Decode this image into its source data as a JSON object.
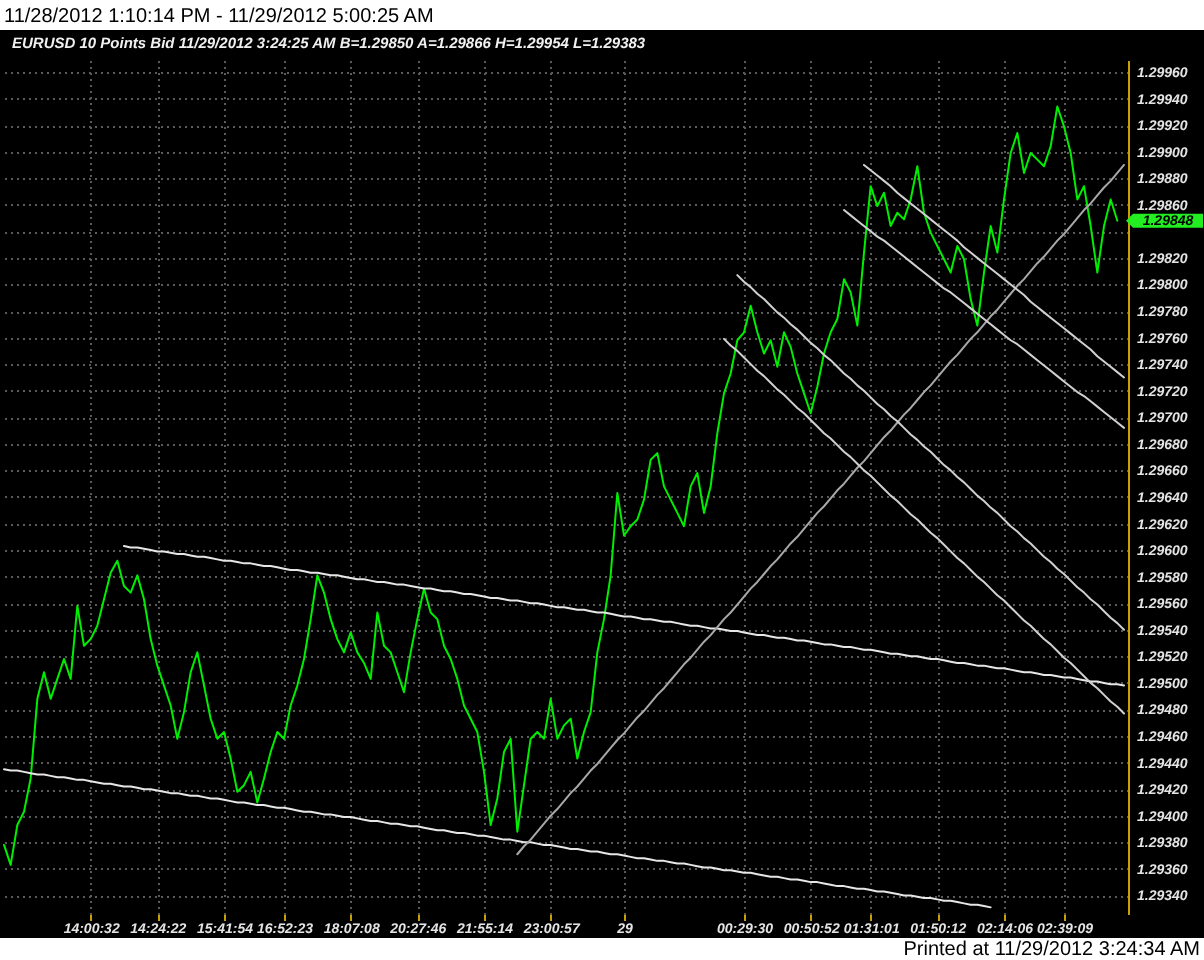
{
  "chart_data": {
    "type": "line",
    "title": "11/28/2012 1:10:14 PM - 11/29/2012 5:00:25 AM",
    "subtitle": "EURUSD   10 Points   Bid   11/29/2012  3:24:25 AM  B=1.29850  A=1.29866  H=1.29954  L=1.29383",
    "annotations": [
      "Printed at 11/29/2012 3:24:34 AM",
      "1.29848"
    ],
    "categories": [
      null,
      null,
      null,
      null,
      null,
      null,
      null,
      null,
      null,
      null,
      null,
      null,
      null,
      "14:00:32",
      null,
      null,
      null,
      null,
      null,
      null,
      null,
      null,
      null,
      "14:24:22",
      null,
      null,
      null,
      null,
      null,
      null,
      null,
      null,
      null,
      "15:41:54",
      null,
      null,
      null,
      null,
      null,
      null,
      null,
      null,
      "16:52:23",
      null,
      null,
      null,
      null,
      null,
      null,
      null,
      null,
      null,
      "18:07:08",
      null,
      null,
      null,
      null,
      null,
      null,
      null,
      null,
      null,
      "20:27:46",
      null,
      null,
      null,
      null,
      null,
      null,
      null,
      null,
      null,
      "21:55:14",
      null,
      null,
      null,
      null,
      null,
      null,
      null,
      null,
      null,
      "23:00:57",
      null,
      null,
      null,
      null,
      null,
      null,
      null,
      null,
      null,
      null,
      "29",
      null,
      null,
      null,
      null,
      null,
      null,
      null,
      null,
      null,
      null,
      null,
      null,
      null,
      null,
      null,
      null,
      null,
      "00:29:30",
      null,
      null,
      null,
      null,
      null,
      null,
      null,
      null,
      null,
      "00:50:52",
      null,
      null,
      null,
      null,
      null,
      null,
      null,
      null,
      "01:31:01",
      null,
      null,
      null,
      null,
      null,
      null,
      null,
      null,
      null,
      "01:50:12",
      null,
      null,
      null,
      null,
      null,
      null,
      null,
      null,
      null,
      "02:14:06",
      null,
      null,
      null,
      null,
      null,
      null,
      null,
      null,
      "02:39:09",
      null,
      null,
      null,
      null,
      null,
      null,
      null,
      null,
      null
    ],
    "ylim": [
      1.29326,
      1.29969
    ],
    "yticks": [
      {
        "value": 1.2934,
        "label": "1.29340"
      },
      {
        "value": 1.2936,
        "label": "1.29360"
      },
      {
        "value": 1.2938,
        "label": "1.29380"
      },
      {
        "value": 1.294,
        "label": "1.29400"
      },
      {
        "value": 1.2942,
        "label": "1.29420"
      },
      {
        "value": 1.2944,
        "label": "1.29440"
      },
      {
        "value": 1.2946,
        "label": "1.29460"
      },
      {
        "value": 1.2948,
        "label": "1.29480"
      },
      {
        "value": 1.295,
        "label": "1.29500"
      },
      {
        "value": 1.2952,
        "label": "1.29520"
      },
      {
        "value": 1.2954,
        "label": "1.29540"
      },
      {
        "value": 1.2956,
        "label": "1.29560"
      },
      {
        "value": 1.2958,
        "label": "1.29580"
      },
      {
        "value": 1.296,
        "label": "1.29600"
      },
      {
        "value": 1.2962,
        "label": "1.29620"
      },
      {
        "value": 1.2964,
        "label": "1.29640"
      },
      {
        "value": 1.2966,
        "label": "1.29660"
      },
      {
        "value": 1.2968,
        "label": "1.29680"
      },
      {
        "value": 1.297,
        "label": "1.29700"
      },
      {
        "value": 1.2972,
        "label": "1.29720"
      },
      {
        "value": 1.2974,
        "label": "1.29740"
      },
      {
        "value": 1.2976,
        "label": "1.29760"
      },
      {
        "value": 1.2978,
        "label": "1.29780"
      },
      {
        "value": 1.298,
        "label": "1.29800"
      },
      {
        "value": 1.2982,
        "label": "1.29820"
      },
      {
        "value": 1.2984,
        "label": null
      },
      {
        "value": 1.2986,
        "label": "1.29860"
      },
      {
        "value": 1.2988,
        "label": "1.29880"
      },
      {
        "value": 1.299,
        "label": "1.29900"
      },
      {
        "value": 1.2992,
        "label": "1.29920"
      },
      {
        "value": 1.2994,
        "label": "1.29940"
      },
      {
        "value": 1.2996,
        "label": "1.29960"
      }
    ],
    "grid": true,
    "series": [
      {
        "color": "#00ee00",
        "values": [
          1.29378,
          1.29363,
          1.29393,
          1.29403,
          1.29428,
          1.29488,
          1.29508,
          1.29488,
          1.29503,
          1.29518,
          1.29503,
          1.29558,
          1.29528,
          1.29533,
          1.29543,
          1.29563,
          1.29583,
          1.29592,
          1.29573,
          1.29568,
          1.29581,
          1.29563,
          1.29533,
          1.29513,
          1.29498,
          1.29483,
          1.29458,
          1.29478,
          1.29508,
          1.29523,
          1.29498,
          1.29473,
          1.29458,
          1.29463,
          1.29443,
          1.29418,
          1.29423,
          1.29433,
          1.2941,
          1.29428,
          1.29448,
          1.29463,
          1.29458,
          1.29483,
          1.29498,
          1.29518,
          1.29548,
          1.29581,
          1.29568,
          1.29548,
          1.29533,
          1.29523,
          1.29538,
          1.29523,
          1.29515,
          1.29503,
          1.29553,
          1.29528,
          1.29523,
          1.29508,
          1.29493,
          1.29523,
          1.29548,
          1.29571,
          1.29553,
          1.29548,
          1.29528,
          1.29518,
          1.29503,
          1.29483,
          1.29473,
          1.29463,
          1.29433,
          1.29393,
          1.29413,
          1.29448,
          1.29458,
          1.29388,
          1.29423,
          1.29458,
          1.29463,
          1.29458,
          1.29488,
          1.29458,
          1.29468,
          1.29473,
          1.29443,
          1.29463,
          1.29478,
          1.29523,
          1.29548,
          1.29581,
          1.29643,
          1.29611,
          1.29618,
          1.29623,
          1.29638,
          1.29668,
          1.29673,
          1.29648,
          1.29638,
          1.29628,
          1.29618,
          1.29648,
          1.29658,
          1.29628,
          1.29648,
          1.29688,
          1.29718,
          1.29733,
          1.29758,
          1.29764,
          1.29784,
          1.29764,
          1.29748,
          1.29758,
          1.29738,
          1.29764,
          1.29753,
          1.29733,
          1.29718,
          1.29703,
          1.29723,
          1.29748,
          1.29764,
          1.29774,
          1.29804,
          1.29794,
          1.29769,
          1.29824,
          1.29874,
          1.29859,
          1.29869,
          1.29844,
          1.29854,
          1.29849,
          1.29864,
          1.29889,
          1.29854,
          1.29839,
          1.29829,
          1.29819,
          1.29809,
          1.29829,
          1.29819,
          1.29789,
          1.29769,
          1.29809,
          1.29844,
          1.29824,
          1.29864,
          1.29899,
          1.29914,
          1.29884,
          1.29899,
          1.29894,
          1.29889,
          1.29904,
          1.29934,
          1.29919,
          1.29899,
          1.29864,
          1.29874,
          1.29844,
          1.29809,
          1.29844,
          1.29864,
          1.29848,
          null
        ]
      },
      {
        "type": "line",
        "color": "#e6e6e6",
        "values": [
          null,
          null,
          null,
          null,
          null,
          null,
          null,
          null,
          null,
          null,
          null,
          null,
          null,
          null,
          null,
          null,
          null,
          null,
          1.29603,
          1.29602,
          1.29602,
          1.29601,
          1.296,
          1.29599,
          1.29599,
          1.29598,
          1.29597,
          1.29597,
          1.29596,
          1.29595,
          1.29595,
          1.29594,
          1.29593,
          1.29592,
          1.29592,
          1.29591,
          1.2959,
          1.2959,
          1.29589,
          1.29588,
          1.29588,
          1.29587,
          1.29586,
          1.29585,
          1.29585,
          1.29584,
          1.29583,
          1.29583,
          1.29582,
          1.29581,
          1.29581,
          1.2958,
          1.29579,
          1.29578,
          1.29578,
          1.29577,
          1.29576,
          1.29576,
          1.29575,
          1.29574,
          1.29574,
          1.29573,
          1.29572,
          1.29571,
          1.29571,
          1.2957,
          1.29569,
          1.29569,
          1.29568,
          1.29567,
          1.29567,
          1.29566,
          1.29565,
          1.29564,
          1.29564,
          1.29563,
          1.29562,
          1.29562,
          1.29561,
          1.2956,
          1.2956,
          1.29559,
          1.29558,
          1.29557,
          1.29557,
          1.29556,
          1.29555,
          1.29555,
          1.29554,
          1.29553,
          1.29553,
          1.29552,
          1.29551,
          1.2955,
          1.2955,
          1.29549,
          1.29548,
          1.29548,
          1.29547,
          1.29546,
          1.29546,
          1.29545,
          1.29544,
          1.29543,
          1.29543,
          1.29542,
          1.29541,
          1.29541,
          1.2954,
          1.29539,
          1.29539,
          1.29538,
          1.29537,
          1.29536,
          1.29536,
          1.29535,
          1.29534,
          1.29534,
          1.29533,
          1.29532,
          1.29532,
          1.29531,
          1.2953,
          1.29529,
          1.29529,
          1.29528,
          1.29527,
          1.29527,
          1.29526,
          1.29525,
          1.29525,
          1.29524,
          1.29523,
          1.29522,
          1.29522,
          1.29521,
          1.2952,
          1.2952,
          1.29519,
          1.29518,
          1.29518,
          1.29517,
          1.29516,
          1.29515,
          1.29515,
          1.29514,
          1.29513,
          1.29513,
          1.29512,
          1.29511,
          1.29511,
          1.2951,
          1.29509,
          1.29508,
          1.29508,
          1.29507,
          1.29506,
          1.29506,
          1.29505,
          1.29504,
          1.29504,
          1.29503,
          1.29502,
          1.29501,
          1.29501,
          1.295,
          1.29499,
          1.29499,
          1.29498
        ]
      },
      {
        "type": "line",
        "color": "#e6e6e6",
        "values": [
          1.29435,
          1.29434,
          1.29434,
          1.29433,
          1.29432,
          1.29431,
          1.29431,
          1.2943,
          1.29429,
          1.29429,
          1.29428,
          1.29427,
          1.29427,
          1.29426,
          1.29425,
          1.29424,
          1.29424,
          1.29423,
          1.29422,
          1.29422,
          1.29421,
          1.2942,
          1.2942,
          1.29419,
          1.29418,
          1.29417,
          1.29417,
          1.29416,
          1.29415,
          1.29415,
          1.29414,
          1.29413,
          1.29413,
          1.29412,
          1.29411,
          1.2941,
          1.2941,
          1.29409,
          1.29408,
          1.29408,
          1.29407,
          1.29406,
          1.29406,
          1.29405,
          1.29404,
          1.29403,
          1.29403,
          1.29402,
          1.29401,
          1.29401,
          1.294,
          1.29399,
          1.29399,
          1.29398,
          1.29397,
          1.29396,
          1.29396,
          1.29395,
          1.29394,
          1.29394,
          1.29393,
          1.29392,
          1.29392,
          1.29391,
          1.2939,
          1.29389,
          1.29389,
          1.29388,
          1.29387,
          1.29387,
          1.29386,
          1.29385,
          1.29385,
          1.29384,
          1.29383,
          1.29382,
          1.29382,
          1.29381,
          1.2938,
          1.2938,
          1.29379,
          1.29378,
          1.29378,
          1.29377,
          1.29376,
          1.29375,
          1.29375,
          1.29374,
          1.29373,
          1.29373,
          1.29372,
          1.29371,
          1.29371,
          1.2937,
          1.29369,
          1.29368,
          1.29368,
          1.29367,
          1.29366,
          1.29366,
          1.29365,
          1.29364,
          1.29364,
          1.29363,
          1.29362,
          1.29361,
          1.29361,
          1.2936,
          1.29359,
          1.29359,
          1.29358,
          1.29357,
          1.29357,
          1.29356,
          1.29355,
          1.29354,
          1.29354,
          1.29353,
          1.29352,
          1.29352,
          1.29351,
          1.2935,
          1.2935,
          1.29349,
          1.29348,
          1.29347,
          1.29347,
          1.29346,
          1.29345,
          1.29345,
          1.29344,
          1.29343,
          1.29343,
          1.29342,
          1.29341,
          1.2934,
          1.2934,
          1.29339,
          1.29338,
          1.29338,
          1.29337,
          1.29336,
          1.29336,
          1.29335,
          1.29334,
          1.29333,
          1.29333,
          1.29332,
          1.29331,
          null,
          null,
          null,
          null,
          null,
          null,
          null,
          null,
          null,
          null,
          null,
          null,
          null,
          null,
          null,
          null,
          null,
          null,
          null,
          null
        ]
      },
      {
        "type": "line",
        "color": "#a8a8a8",
        "values": [
          null,
          null,
          null,
          null,
          null,
          null,
          null,
          null,
          null,
          null,
          null,
          null,
          null,
          null,
          null,
          null,
          null,
          null,
          null,
          null,
          null,
          null,
          null,
          null,
          null,
          null,
          null,
          null,
          null,
          null,
          null,
          null,
          null,
          null,
          null,
          null,
          null,
          null,
          null,
          null,
          null,
          null,
          null,
          null,
          null,
          null,
          null,
          null,
          null,
          null,
          null,
          null,
          null,
          null,
          null,
          null,
          null,
          null,
          null,
          null,
          null,
          null,
          null,
          null,
          null,
          null,
          null,
          null,
          null,
          null,
          null,
          null,
          null,
          null,
          null,
          null,
          null,
          1.29371,
          1.29377,
          1.29382,
          1.29388,
          1.29394,
          1.294,
          1.29405,
          1.29411,
          1.29417,
          1.29422,
          1.29428,
          1.29434,
          1.29439,
          1.29445,
          1.29451,
          1.29457,
          1.29462,
          1.29468,
          1.29474,
          1.29479,
          1.29485,
          1.29491,
          1.29496,
          1.29502,
          1.29508,
          1.29514,
          1.29519,
          1.29525,
          1.29531,
          1.29536,
          1.29542,
          1.29548,
          1.29553,
          1.29559,
          1.29565,
          1.29571,
          1.29576,
          1.29582,
          1.29588,
          1.29593,
          1.29599,
          1.29605,
          1.2961,
          1.29616,
          1.29622,
          1.29628,
          1.29633,
          1.29639,
          1.29645,
          1.2965,
          1.29656,
          1.29662,
          1.29667,
          1.29673,
          1.29679,
          1.29685,
          1.2969,
          1.29696,
          1.29702,
          1.29707,
          1.29713,
          1.29719,
          1.29724,
          1.2973,
          1.29736,
          1.29742,
          1.29747,
          1.29753,
          1.29759,
          1.29764,
          1.2977,
          1.29776,
          1.29781,
          1.29787,
          1.29793,
          1.29799,
          1.29804,
          1.2981,
          1.29816,
          1.29821,
          1.29827,
          1.29833,
          1.29838,
          1.29844,
          1.2985,
          1.29856,
          1.29861,
          1.29867,
          1.29873,
          1.29878,
          1.29884,
          1.2989
        ]
      },
      {
        "type": "line",
        "color": "#d0d0d0",
        "values": [
          null,
          null,
          null,
          null,
          null,
          null,
          null,
          null,
          null,
          null,
          null,
          null,
          null,
          null,
          null,
          null,
          null,
          null,
          null,
          null,
          null,
          null,
          null,
          null,
          null,
          null,
          null,
          null,
          null,
          null,
          null,
          null,
          null,
          null,
          null,
          null,
          null,
          null,
          null,
          null,
          null,
          null,
          null,
          null,
          null,
          null,
          null,
          null,
          null,
          null,
          null,
          null,
          null,
          null,
          null,
          null,
          null,
          null,
          null,
          null,
          null,
          null,
          null,
          null,
          null,
          null,
          null,
          null,
          null,
          null,
          null,
          null,
          null,
          null,
          null,
          null,
          null,
          null,
          null,
          null,
          null,
          null,
          null,
          null,
          null,
          null,
          null,
          null,
          null,
          null,
          null,
          null,
          null,
          null,
          null,
          null,
          null,
          null,
          null,
          null,
          null,
          null,
          null,
          null,
          null,
          null,
          null,
          null,
          null,
          null,
          1.29807,
          1.29802,
          1.29798,
          1.29793,
          1.29789,
          1.29784,
          1.29779,
          1.29775,
          1.2977,
          1.29766,
          1.29761,
          1.29756,
          1.29752,
          1.29747,
          1.29743,
          1.29738,
          1.29733,
          1.29729,
          1.29724,
          1.2972,
          1.29715,
          1.2971,
          1.29706,
          1.29701,
          1.29697,
          1.29692,
          1.29687,
          1.29683,
          1.29678,
          1.29674,
          1.29669,
          1.29664,
          1.2966,
          1.29655,
          1.29651,
          1.29646,
          1.29641,
          1.29637,
          1.29632,
          1.29628,
          1.29623,
          1.29618,
          1.29614,
          1.29609,
          1.29605,
          1.296,
          1.29595,
          1.29591,
          1.29586,
          1.29582,
          1.29577,
          1.29572,
          1.29568,
          1.29563,
          1.29559,
          1.29554,
          1.29549,
          1.29545,
          1.2954
        ]
      },
      {
        "type": "line",
        "color": "#d0d0d0",
        "values": [
          null,
          null,
          null,
          null,
          null,
          null,
          null,
          null,
          null,
          null,
          null,
          null,
          null,
          null,
          null,
          null,
          null,
          null,
          null,
          null,
          null,
          null,
          null,
          null,
          null,
          null,
          null,
          null,
          null,
          null,
          null,
          null,
          null,
          null,
          null,
          null,
          null,
          null,
          null,
          null,
          null,
          null,
          null,
          null,
          null,
          null,
          null,
          null,
          null,
          null,
          null,
          null,
          null,
          null,
          null,
          null,
          null,
          null,
          null,
          null,
          null,
          null,
          null,
          null,
          null,
          null,
          null,
          null,
          null,
          null,
          null,
          null,
          null,
          null,
          null,
          null,
          null,
          null,
          null,
          null,
          null,
          null,
          null,
          null,
          null,
          null,
          null,
          null,
          null,
          null,
          null,
          null,
          null,
          null,
          null,
          null,
          null,
          null,
          null,
          null,
          null,
          null,
          null,
          null,
          null,
          null,
          null,
          null,
          1.29759,
          1.29754,
          1.2975,
          1.29745,
          1.2974,
          1.29735,
          1.29731,
          1.29726,
          1.29721,
          1.29717,
          1.29712,
          1.29707,
          1.29703,
          1.29698,
          1.29693,
          1.29688,
          1.29684,
          1.29679,
          1.29674,
          1.2967,
          1.29665,
          1.2966,
          1.29656,
          1.29651,
          1.29646,
          1.29641,
          1.29637,
          1.29632,
          1.29627,
          1.29623,
          1.29618,
          1.29613,
          1.29609,
          1.29604,
          1.29599,
          1.29594,
          1.2959,
          1.29585,
          1.2958,
          1.29576,
          1.29571,
          1.29566,
          1.29562,
          1.29557,
          1.29552,
          1.29547,
          1.29543,
          1.29538,
          1.29533,
          1.29529,
          1.29524,
          1.29519,
          1.29515,
          1.2951,
          1.29505,
          1.295,
          1.29496,
          1.29491,
          1.29486,
          1.29482,
          1.29477
        ]
      },
      {
        "type": "line",
        "color": "#d0d0d0",
        "values": [
          null,
          null,
          null,
          null,
          null,
          null,
          null,
          null,
          null,
          null,
          null,
          null,
          null,
          null,
          null,
          null,
          null,
          null,
          null,
          null,
          null,
          null,
          null,
          null,
          null,
          null,
          null,
          null,
          null,
          null,
          null,
          null,
          null,
          null,
          null,
          null,
          null,
          null,
          null,
          null,
          null,
          null,
          null,
          null,
          null,
          null,
          null,
          null,
          null,
          null,
          null,
          null,
          null,
          null,
          null,
          null,
          null,
          null,
          null,
          null,
          null,
          null,
          null,
          null,
          null,
          null,
          null,
          null,
          null,
          null,
          null,
          null,
          null,
          null,
          null,
          null,
          null,
          null,
          null,
          null,
          null,
          null,
          null,
          null,
          null,
          null,
          null,
          null,
          null,
          null,
          null,
          null,
          null,
          null,
          null,
          null,
          null,
          null,
          null,
          null,
          null,
          null,
          null,
          null,
          null,
          null,
          null,
          null,
          null,
          null,
          null,
          null,
          null,
          null,
          null,
          null,
          null,
          null,
          null,
          null,
          null,
          null,
          null,
          null,
          null,
          null,
          null,
          null,
          null,
          1.2989,
          1.29886,
          1.29882,
          1.29878,
          1.29874,
          1.29869,
          1.29865,
          1.29861,
          1.29857,
          1.29853,
          1.29849,
          1.29845,
          1.29841,
          1.29837,
          1.29833,
          1.29828,
          1.29824,
          1.2982,
          1.29816,
          1.29812,
          1.29808,
          1.29804,
          1.298,
          1.29796,
          1.29792,
          1.29787,
          1.29783,
          1.29779,
          1.29775,
          1.29771,
          1.29767,
          1.29763,
          1.29759,
          1.29755,
          1.29751,
          1.29746,
          1.29742,
          1.29738,
          1.29734,
          1.2973
        ]
      },
      {
        "type": "line",
        "color": "#d0d0d0",
        "values": [
          null,
          null,
          null,
          null,
          null,
          null,
          null,
          null,
          null,
          null,
          null,
          null,
          null,
          null,
          null,
          null,
          null,
          null,
          null,
          null,
          null,
          null,
          null,
          null,
          null,
          null,
          null,
          null,
          null,
          null,
          null,
          null,
          null,
          null,
          null,
          null,
          null,
          null,
          null,
          null,
          null,
          null,
          null,
          null,
          null,
          null,
          null,
          null,
          null,
          null,
          null,
          null,
          null,
          null,
          null,
          null,
          null,
          null,
          null,
          null,
          null,
          null,
          null,
          null,
          null,
          null,
          null,
          null,
          null,
          null,
          null,
          null,
          null,
          null,
          null,
          null,
          null,
          null,
          null,
          null,
          null,
          null,
          null,
          null,
          null,
          null,
          null,
          null,
          null,
          null,
          null,
          null,
          null,
          null,
          null,
          null,
          null,
          null,
          null,
          null,
          null,
          null,
          null,
          null,
          null,
          null,
          null,
          null,
          null,
          null,
          null,
          null,
          null,
          null,
          null,
          null,
          null,
          null,
          null,
          null,
          null,
          null,
          null,
          null,
          null,
          null,
          1.29856,
          1.29852,
          1.29848,
          1.29844,
          1.2984,
          1.29836,
          1.29833,
          1.29829,
          1.29825,
          1.29821,
          1.29817,
          1.29813,
          1.29809,
          1.29805,
          1.29801,
          1.29797,
          1.29794,
          1.2979,
          1.29786,
          1.29782,
          1.29778,
          1.29774,
          1.2977,
          1.29766,
          1.29762,
          1.29758,
          1.29755,
          1.29751,
          1.29747,
          1.29743,
          1.29739,
          1.29735,
          1.29731,
          1.29727,
          1.29723,
          1.29719,
          1.29716,
          1.29712,
          1.29708,
          1.29704,
          1.297,
          1.29696,
          1.29692
        ]
      }
    ]
  }
}
